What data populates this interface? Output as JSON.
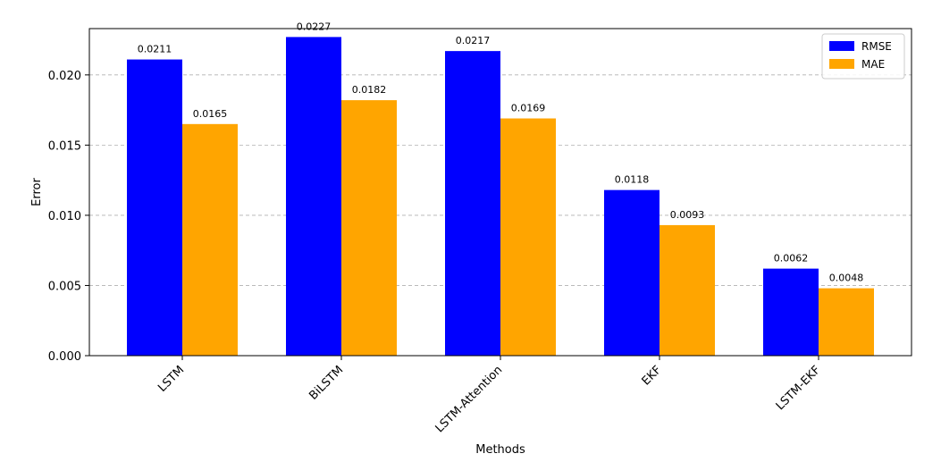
{
  "chart_data": {
    "type": "bar",
    "categories": [
      "LSTM",
      "BiLSTM",
      "LSTM-Attention",
      "EKF",
      "LSTM-EKF"
    ],
    "series": [
      {
        "name": "RMSE",
        "color": "#0000ff",
        "values": [
          0.0211,
          0.0227,
          0.0217,
          0.0118,
          0.0062
        ]
      },
      {
        "name": "MAE",
        "color": "#ffa500",
        "values": [
          0.0165,
          0.0182,
          0.0169,
          0.0093,
          0.0048
        ]
      }
    ],
    "value_labels": [
      [
        "0.0211",
        "0.0227",
        "0.0217",
        "0.0118",
        "0.0062"
      ],
      [
        "0.0165",
        "0.0182",
        "0.0169",
        "0.0093",
        "0.0048"
      ]
    ],
    "xlabel": "Methods",
    "ylabel": "Error",
    "ylim": [
      0,
      0.0233
    ],
    "yticks": [
      0.0,
      0.005,
      0.01,
      0.015,
      0.02
    ],
    "ytick_labels": [
      "0.000",
      "0.005",
      "0.010",
      "0.015",
      "0.020"
    ],
    "grid": "y-dashed",
    "legend_position": "top-right"
  }
}
